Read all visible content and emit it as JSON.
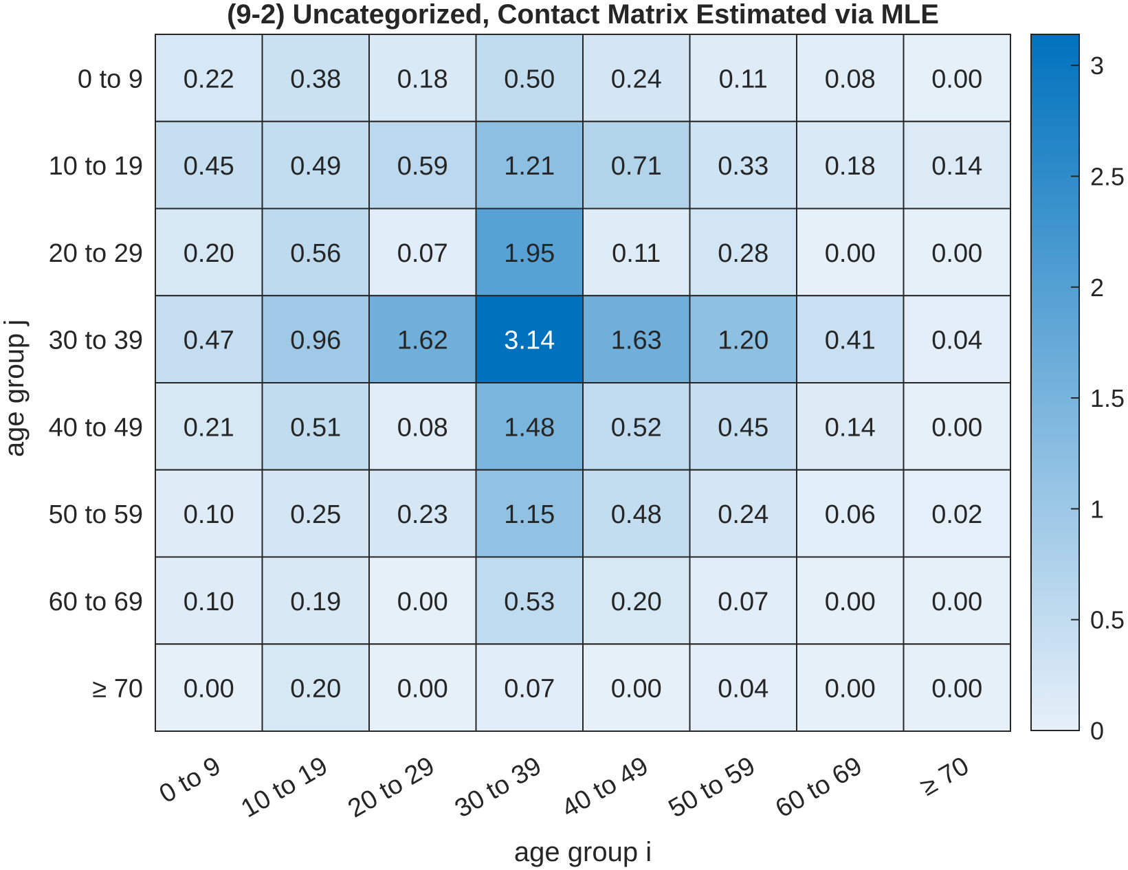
{
  "chart_data": {
    "type": "heatmap",
    "title": "(9-2) Uncategorized, Contact Matrix Estimated via MLE",
    "xlabel": "age group i",
    "ylabel": "age group j",
    "x_categories": [
      "0 to 9",
      "10 to 19",
      "20 to 29",
      "30 to 39",
      "40 to 49",
      "50 to 59",
      "60 to 69",
      "≥ 70"
    ],
    "y_categories": [
      "0 to 9",
      "10 to 19",
      "20 to 29",
      "30 to 39",
      "40 to 49",
      "50 to 59",
      "60 to 69",
      "≥ 70"
    ],
    "values": [
      [
        0.22,
        0.38,
        0.18,
        0.5,
        0.24,
        0.11,
        0.08,
        0.0
      ],
      [
        0.45,
        0.49,
        0.59,
        1.21,
        0.71,
        0.33,
        0.18,
        0.14
      ],
      [
        0.2,
        0.56,
        0.07,
        1.95,
        0.11,
        0.28,
        0.0,
        0.0
      ],
      [
        0.47,
        0.96,
        1.62,
        3.14,
        1.63,
        1.2,
        0.41,
        0.04
      ],
      [
        0.21,
        0.51,
        0.08,
        1.48,
        0.52,
        0.45,
        0.14,
        0.0
      ],
      [
        0.1,
        0.25,
        0.23,
        1.15,
        0.48,
        0.24,
        0.06,
        0.02
      ],
      [
        0.1,
        0.19,
        0.0,
        0.53,
        0.2,
        0.07,
        0.0,
        0.0
      ],
      [
        0.0,
        0.2,
        0.0,
        0.07,
        0.0,
        0.04,
        0.0,
        0.0
      ]
    ],
    "value_labels": [
      [
        "0.22",
        "0.38",
        "0.18",
        "0.50",
        "0.24",
        "0.11",
        "0.08",
        "0.00"
      ],
      [
        "0.45",
        "0.49",
        "0.59",
        "1.21",
        "0.71",
        "0.33",
        "0.18",
        "0.14"
      ],
      [
        "0.20",
        "0.56",
        "0.07",
        "1.95",
        "0.11",
        "0.28",
        "0.00",
        "0.00"
      ],
      [
        "0.47",
        "0.96",
        "1.62",
        "3.14",
        "1.63",
        "1.20",
        "0.41",
        "0.04"
      ],
      [
        "0.21",
        "0.51",
        "0.08",
        "1.48",
        "0.52",
        "0.45",
        "0.14",
        "0.00"
      ],
      [
        "0.10",
        "0.25",
        "0.23",
        "1.15",
        "0.48",
        "0.24",
        "0.06",
        "0.02"
      ],
      [
        "0.10",
        "0.19",
        "0.00",
        "0.53",
        "0.20",
        "0.07",
        "0.00",
        "0.00"
      ],
      [
        "0.00",
        "0.20",
        "0.00",
        "0.07",
        "0.00",
        "0.04",
        "0.00",
        "0.00"
      ]
    ],
    "colorbar": {
      "range": [
        0,
        3.14
      ],
      "ticks": [
        0,
        0.5,
        1,
        1.5,
        2,
        2.5,
        3
      ],
      "tick_labels": [
        "0",
        "0.5",
        "1",
        "1.5",
        "2",
        "2.5",
        "3"
      ],
      "color_low": "#e6f0f9",
      "color_high": "#0072bd"
    },
    "grid": true,
    "cell_text_color_dark": "#262626",
    "cell_text_color_light": "#ffffff",
    "border_color": "#262626"
  }
}
